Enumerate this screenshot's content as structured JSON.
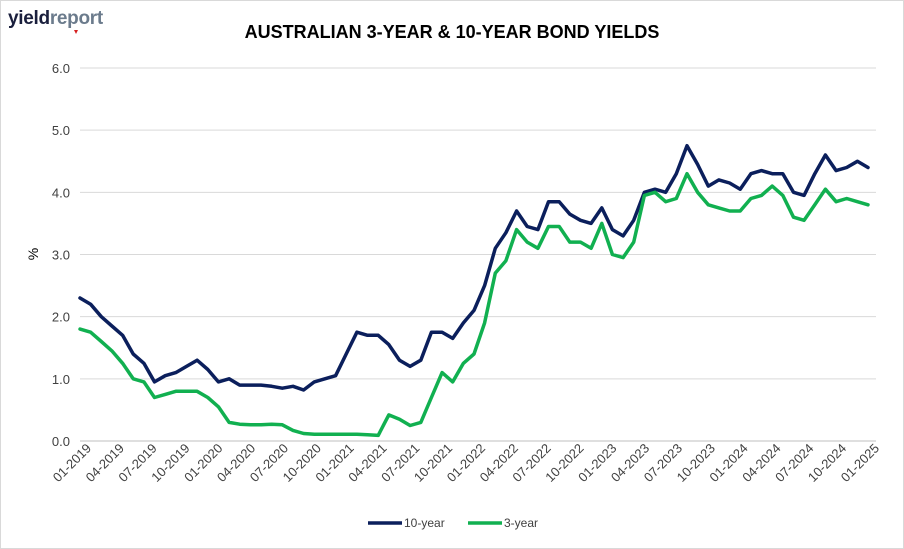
{
  "brand": {
    "part1": "yield",
    "part2": "report"
  },
  "colors": {
    "ten_year": "#0b1f5c",
    "three_year": "#11b050",
    "grid": "#d9d9d9"
  },
  "chart_data": {
    "type": "line",
    "title": "AUSTRALIAN 3-YEAR & 10-YEAR BOND YIELDS",
    "ylabel": "%",
    "ylim": [
      0,
      6
    ],
    "yticks": [
      "0.0",
      "1.0",
      "2.0",
      "3.0",
      "4.0",
      "5.0",
      "6.0"
    ],
    "xticks": [
      "01-2019",
      "04-2019",
      "07-2019",
      "10-2019",
      "01-2020",
      "04-2020",
      "07-2020",
      "10-2020",
      "01-2021",
      "04-2021",
      "07-2021",
      "10-2021",
      "01-2022",
      "04-2022",
      "07-2022",
      "10-2022",
      "01-2023",
      "04-2023",
      "07-2023",
      "10-2023",
      "01-2024",
      "04-2024",
      "07-2024",
      "10-2024",
      "01-2025"
    ],
    "grid": true,
    "legend_position": "bottom",
    "x": [
      "2019-01",
      "2019-02",
      "2019-03",
      "2019-04",
      "2019-05",
      "2019-06",
      "2019-07",
      "2019-08",
      "2019-09",
      "2019-10",
      "2019-11",
      "2019-12",
      "2020-01",
      "2020-02",
      "2020-03",
      "2020-04",
      "2020-05",
      "2020-06",
      "2020-07",
      "2020-08",
      "2020-09",
      "2020-10",
      "2020-11",
      "2020-12",
      "2021-01",
      "2021-02",
      "2021-03",
      "2021-04",
      "2021-05",
      "2021-06",
      "2021-07",
      "2021-08",
      "2021-09",
      "2021-10",
      "2021-11",
      "2021-12",
      "2022-01",
      "2022-02",
      "2022-03",
      "2022-04",
      "2022-05",
      "2022-06",
      "2022-07",
      "2022-08",
      "2022-09",
      "2022-10",
      "2022-11",
      "2022-12",
      "2023-01",
      "2023-02",
      "2023-03",
      "2023-04",
      "2023-05",
      "2023-06",
      "2023-07",
      "2023-08",
      "2023-09",
      "2023-10",
      "2023-11",
      "2023-12",
      "2024-01",
      "2024-02",
      "2024-03",
      "2024-04",
      "2024-05",
      "2024-06",
      "2024-07",
      "2024-08",
      "2024-09",
      "2024-10",
      "2024-11",
      "2024-12",
      "2025-01",
      "2025-02",
      "2025-03"
    ],
    "series": [
      {
        "name": "10-year",
        "values": [
          2.3,
          2.2,
          2.0,
          1.85,
          1.7,
          1.4,
          1.25,
          0.95,
          1.05,
          1.1,
          1.2,
          1.3,
          1.15,
          0.95,
          1.0,
          0.9,
          0.9,
          0.9,
          0.88,
          0.85,
          0.88,
          0.82,
          0.95,
          1.0,
          1.05,
          1.4,
          1.75,
          1.7,
          1.7,
          1.55,
          1.3,
          1.2,
          1.3,
          1.75,
          1.75,
          1.65,
          1.9,
          2.1,
          2.5,
          3.1,
          3.35,
          3.7,
          3.45,
          3.4,
          3.85,
          3.85,
          3.65,
          3.55,
          3.5,
          3.75,
          3.4,
          3.3,
          3.55,
          4.0,
          4.05,
          4.0,
          4.3,
          4.75,
          4.45,
          4.1,
          4.2,
          4.15,
          4.05,
          4.3,
          4.35,
          4.3,
          4.3,
          4.0,
          3.95,
          4.3,
          4.6,
          4.35,
          4.4,
          4.5,
          4.4
        ]
      },
      {
        "name": "3-year",
        "values": [
          1.8,
          1.75,
          1.6,
          1.45,
          1.25,
          1.0,
          0.95,
          0.7,
          0.75,
          0.8,
          0.8,
          0.8,
          0.7,
          0.55,
          0.3,
          0.27,
          0.26,
          0.26,
          0.27,
          0.26,
          0.17,
          0.12,
          0.11,
          0.11,
          0.11,
          0.11,
          0.11,
          0.1,
          0.09,
          0.42,
          0.35,
          0.25,
          0.3,
          0.7,
          1.1,
          0.95,
          1.25,
          1.4,
          1.9,
          2.7,
          2.9,
          3.4,
          3.2,
          3.1,
          3.45,
          3.45,
          3.2,
          3.2,
          3.1,
          3.5,
          3.0,
          2.95,
          3.2,
          3.95,
          4.0,
          3.85,
          3.9,
          4.3,
          4.0,
          3.8,
          3.75,
          3.7,
          3.7,
          3.9,
          3.95,
          4.1,
          3.95,
          3.6,
          3.55,
          3.8,
          4.05,
          3.85,
          3.9,
          3.85,
          3.8
        ]
      }
    ]
  }
}
